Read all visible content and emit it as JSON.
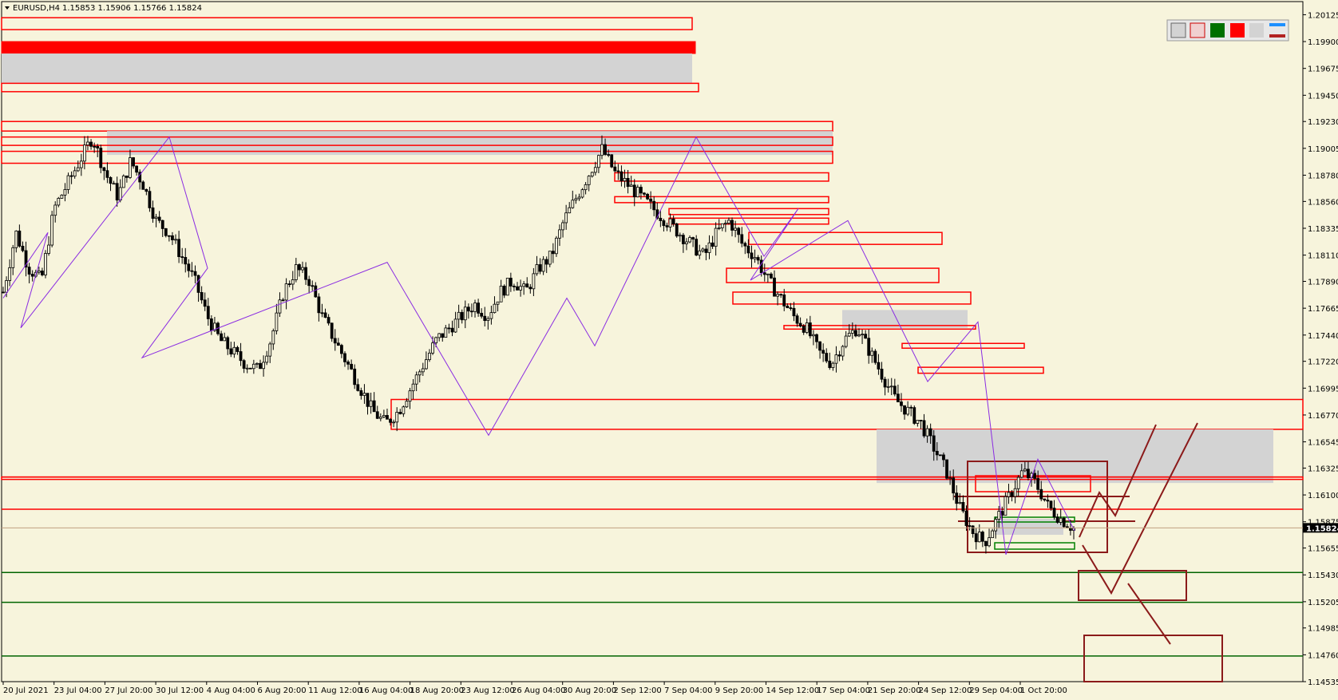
{
  "chart_title": {
    "symbol_timeframe": "EURUSD,H4",
    "ohlc": "1.15853 1.15906 1.15766 1.15824"
  },
  "current_price": "1.15824",
  "colors": {
    "background": "#f7f4dc",
    "zone_fill": "#d3d3d3",
    "zone_outline": "#ff0000",
    "support_line": "#006400",
    "scenario": "#8b1a1a",
    "zigzag": "#8a2be2",
    "candle": "#000000",
    "price_label_bg": "#000000"
  },
  "chart_data": {
    "type": "candlestick",
    "price_range": [
      1.14535,
      1.20235
    ],
    "y_ticks": [
      "1.20125",
      "1.19900",
      "1.19675",
      "1.19450",
      "1.19230",
      "1.19005",
      "1.18780",
      "1.18560",
      "1.18335",
      "1.18110",
      "1.17890",
      "1.17665",
      "1.17440",
      "1.17220",
      "1.16995",
      "1.16770",
      "1.16545",
      "1.16325",
      "1.16100",
      "1.15875",
      "1.15655",
      "1.15430",
      "1.15205",
      "1.14985",
      "1.14760",
      "1.14535"
    ],
    "x_ticks": [
      "20 Jul 2021",
      "23 Jul 04:00",
      "27 Jul 20:00",
      "30 Jul 12:00",
      "4 Aug 04:00",
      "6 Aug 20:00",
      "11 Aug 12:00",
      "16 Aug 04:00",
      "18 Aug 20:00",
      "23 Aug 12:00",
      "26 Aug 04:00",
      "30 Aug 20:00",
      "2 Sep 12:00",
      "7 Sep 04:00",
      "9 Sep 20:00",
      "14 Sep 12:00",
      "17 Sep 04:00",
      "21 Sep 20:00",
      "24 Sep 12:00",
      "29 Sep 04:00",
      "1 Oct 20:00"
    ],
    "price_path": [
      1.178,
      1.183,
      1.18,
      1.179,
      1.185,
      1.187,
      1.189,
      1.191,
      1.188,
      1.186,
      1.189,
      1.187,
      1.184,
      1.183,
      1.181,
      1.179,
      1.176,
      1.174,
      1.173,
      1.172,
      1.1715,
      1.174,
      1.178,
      1.18,
      1.179,
      1.176,
      1.174,
      1.172,
      1.17,
      1.168,
      1.167,
      1.168,
      1.17,
      1.172,
      1.174,
      1.175,
      1.176,
      1.177,
      1.176,
      1.178,
      1.179,
      1.178,
      1.18,
      1.181,
      1.184,
      1.186,
      1.188,
      1.19,
      1.188,
      1.187,
      1.186,
      1.185,
      1.184,
      1.183,
      1.182,
      1.181,
      1.183,
      1.184,
      1.182,
      1.181,
      1.179,
      1.1775,
      1.176,
      1.175,
      1.173,
      1.172,
      1.174,
      1.175,
      1.173,
      1.171,
      1.169,
      1.168,
      1.167,
      1.165,
      1.163,
      1.16,
      1.158,
      1.157,
      1.159,
      1.161,
      1.163,
      1.162,
      1.16,
      1.159,
      1.1582
    ],
    "zigzag": [
      [
        1.1775,
        1.183,
        1.175,
        1.191,
        1.18,
        1.1725,
        1.1805,
        1.166,
        1.1775,
        1.1735,
        1.191,
        1.181,
        1.185,
        1.179,
        1.184,
        1.1705,
        1.1755,
        1.156,
        1.164,
        1.158
      ]
    ],
    "zones": [
      {
        "type": "outline",
        "top": 1.201,
        "bottom": 1.2
      },
      {
        "type": "solid",
        "top": 1.199,
        "bottom": 1.198
      },
      {
        "type": "fill",
        "top": 1.198,
        "bottom": 1.1955
      },
      {
        "type": "outline",
        "top": 1.1955,
        "bottom": 1.1948
      },
      {
        "type": "outline",
        "top": 1.1923,
        "bottom": 1.1915
      },
      {
        "type": "fill",
        "top": 1.1915,
        "bottom": 1.1895
      },
      {
        "type": "outline",
        "top": 1.191,
        "bottom": 1.1903
      },
      {
        "type": "outline",
        "top": 1.1898,
        "bottom": 1.1888
      },
      {
        "type": "outline",
        "top": 1.188,
        "bottom": 1.1873
      },
      {
        "type": "outline",
        "top": 1.186,
        "bottom": 1.1855
      },
      {
        "type": "outline",
        "top": 1.185,
        "bottom": 1.1845
      },
      {
        "type": "outline",
        "top": 1.1842,
        "bottom": 1.1837
      },
      {
        "type": "outline",
        "top": 1.183,
        "bottom": 1.182
      },
      {
        "type": "outline",
        "top": 1.18,
        "bottom": 1.1788
      },
      {
        "type": "outline",
        "top": 1.178,
        "bottom": 1.177
      },
      {
        "type": "fill",
        "top": 1.1765,
        "bottom": 1.175
      },
      {
        "type": "outline",
        "top": 1.1752,
        "bottom": 1.1749
      },
      {
        "type": "outline",
        "top": 1.1737,
        "bottom": 1.1733
      },
      {
        "type": "outline",
        "top": 1.1717,
        "bottom": 1.1712
      },
      {
        "type": "outline",
        "top": 1.169,
        "bottom": 1.1665
      },
      {
        "type": "fill",
        "top": 1.1665,
        "bottom": 1.162
      },
      {
        "type": "outline",
        "top": 1.1625,
        "bottom": 1.1623
      }
    ],
    "support_levels": [
      1.1545,
      1.152,
      1.1475
    ],
    "resistance_levels": [
      1.1625,
      1.1598
    ]
  }
}
